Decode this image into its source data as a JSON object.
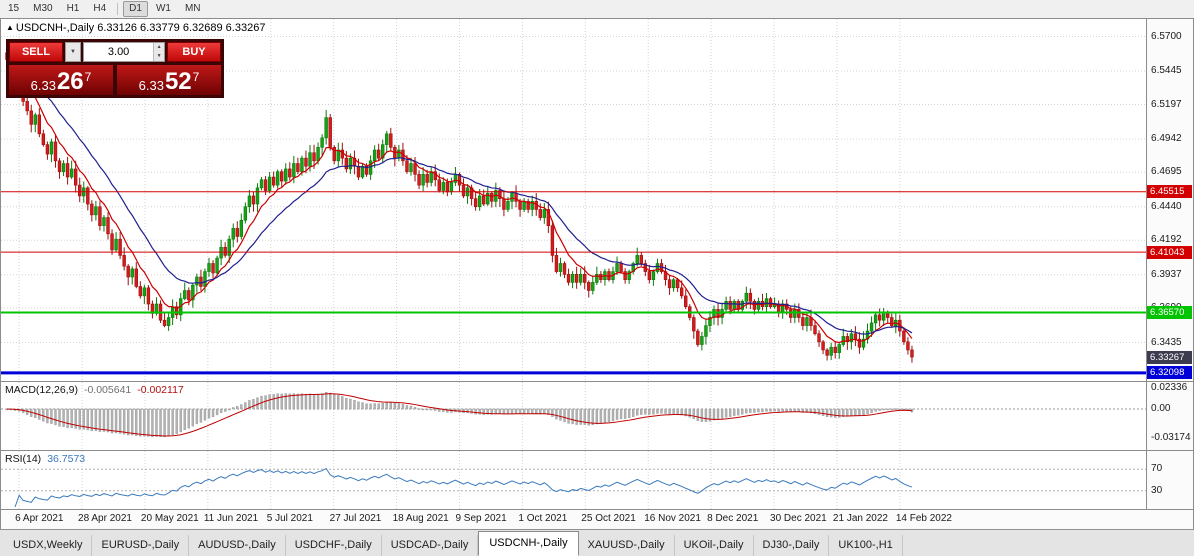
{
  "toolbar": {
    "timeframes": [
      "15",
      "M30",
      "H1",
      "H4",
      "D1",
      "W1",
      "MN"
    ],
    "active": "D1"
  },
  "icons": {
    "dropdown": "▼",
    "spin_up": "▲",
    "spin_down": "▼",
    "title_marker": "▲"
  },
  "chart": {
    "title": "USDCNH-,Daily",
    "ohlc_text": "6.33126 6.33779 6.32689 6.33267",
    "trade_panel": {
      "sell_label": "SELL",
      "buy_label": "BUY",
      "volume": "3.00",
      "bid": {
        "prefix": "6.33",
        "big": "26",
        "sup": "7"
      },
      "ask": {
        "prefix": "6.33",
        "big": "52",
        "sup": "7"
      }
    },
    "y_axis_labels": [
      "6.5700",
      "6.5445",
      "6.5197",
      "6.4942",
      "6.4695",
      "6.4440",
      "6.4192",
      "6.3937",
      "6.3690",
      "6.3435"
    ],
    "price_range": {
      "min": 6.315,
      "max": 6.583
    },
    "levels": [
      {
        "price": 6.45515,
        "label": "6.45515",
        "color": "#d20000",
        "width": 1
      },
      {
        "price": 6.41043,
        "label": "6.41043",
        "color": "#d20000",
        "width": 1
      },
      {
        "price": 6.3657,
        "label": "6.36570",
        "color": "#00c400",
        "width": 2
      },
      {
        "price": 6.32098,
        "label": "6.32098",
        "color": "#0000d8",
        "width": 3
      }
    ],
    "current_price": {
      "price": 6.33267,
      "label": "6.33267",
      "color": "#3c3c4e"
    }
  },
  "macd": {
    "label": "MACD(12,26,9)",
    "value_main": "-0.005641",
    "value_signal": "-0.002117",
    "axis_labels": [
      "0.02336",
      "0.00",
      "-0.03174"
    ],
    "params": {
      "fast": 12,
      "slow": 26,
      "signal": 9
    }
  },
  "rsi": {
    "label": "RSI(14)",
    "value": "36.7573",
    "period": 14,
    "levels": [
      70,
      30
    ],
    "axis_labels": [
      "70",
      "30"
    ]
  },
  "colors": {
    "candle_up": "#15a315",
    "candle_up_edge": "#0b7a0b",
    "candle_down": "#d41c1c",
    "candle_down_edge": "#9e0f0f",
    "ma_fast": "#cc0000",
    "ma_slow": "#1f1f8f",
    "macd_bar": "#b2b2b2",
    "macd_bar_edge": "#9a9a9a",
    "macd_signal": "#c00000",
    "rsi_line": "#3a7abd",
    "grid": "#d4d4d4",
    "level_dash": "#b0b0b0"
  },
  "chart_data": {
    "type": "candlestick",
    "symbol": "USDCNH-",
    "timeframe": "Daily",
    "current_bar": {
      "open": 6.33126,
      "high": 6.33779,
      "low": 6.32689,
      "close": 6.33267
    },
    "first_open": 6.558,
    "closes": [
      6.553,
      6.548,
      6.535,
      6.54,
      6.522,
      6.515,
      6.505,
      6.512,
      6.498,
      6.49,
      6.483,
      6.492,
      6.478,
      6.47,
      6.476,
      6.466,
      6.472,
      6.46,
      6.452,
      6.458,
      6.446,
      6.438,
      6.444,
      6.43,
      6.436,
      6.424,
      6.412,
      6.42,
      6.408,
      6.4,
      6.392,
      6.398,
      6.385,
      6.378,
      6.384,
      6.372,
      6.365,
      6.372,
      6.36,
      6.356,
      6.362,
      6.37,
      6.364,
      6.376,
      6.382,
      6.375,
      6.386,
      6.392,
      6.385,
      6.396,
      6.402,
      6.395,
      6.406,
      6.414,
      6.408,
      6.42,
      6.428,
      6.422,
      6.434,
      6.444,
      6.452,
      6.446,
      6.458,
      6.464,
      6.456,
      6.466,
      6.46,
      6.47,
      6.463,
      6.472,
      6.466,
      6.476,
      6.47,
      6.48,
      6.474,
      6.484,
      6.478,
      6.488,
      6.495,
      6.51,
      6.488,
      6.478,
      6.486,
      6.48,
      6.472,
      6.48,
      6.474,
      6.466,
      6.474,
      6.468,
      6.478,
      6.486,
      6.48,
      6.49,
      6.498,
      6.488,
      6.48,
      6.486,
      6.478,
      6.47,
      6.476,
      6.468,
      6.46,
      6.468,
      6.462,
      6.47,
      6.464,
      6.456,
      6.462,
      6.455,
      6.462,
      6.468,
      6.46,
      6.452,
      6.458,
      6.45,
      6.444,
      6.452,
      6.446,
      6.454,
      6.448,
      6.456,
      6.45,
      6.442,
      6.448,
      6.454,
      6.448,
      6.442,
      6.448,
      6.442,
      6.448,
      6.442,
      6.436,
      6.442,
      6.43,
      6.408,
      6.396,
      6.402,
      6.394,
      6.388,
      6.394,
      6.388,
      6.394,
      6.388,
      6.382,
      6.388,
      6.394,
      6.39,
      6.396,
      6.39,
      6.396,
      6.402,
      6.396,
      6.39,
      6.396,
      6.402,
      6.408,
      6.402,
      6.396,
      6.39,
      6.396,
      6.402,
      6.396,
      6.39,
      6.384,
      6.39,
      6.384,
      6.378,
      6.37,
      6.362,
      6.352,
      6.342,
      6.348,
      6.356,
      6.362,
      6.368,
      6.362,
      6.368,
      6.374,
      6.368,
      6.374,
      6.368,
      6.374,
      6.38,
      6.374,
      6.368,
      6.374,
      6.37,
      6.376,
      6.37,
      6.372,
      6.366,
      6.372,
      6.368,
      6.362,
      6.368,
      6.362,
      6.356,
      6.362,
      6.356,
      6.35,
      6.344,
      6.338,
      6.334,
      6.34,
      6.336,
      6.342,
      6.348,
      6.344,
      6.35,
      6.346,
      6.34,
      6.346,
      6.352,
      6.358,
      6.364,
      6.36,
      6.366,
      6.362,
      6.356,
      6.36,
      6.352,
      6.344,
      6.338,
      6.3327
    ],
    "x_axis_labels": [
      "6 Apr 2021",
      "28 Apr 2021",
      "20 May 2021",
      "11 Jun 2021",
      "5 Jul 2021",
      "27 Jul 2021",
      "18 Aug 2021",
      "9 Sep 2021",
      "1 Oct 2021",
      "25 Oct 2021",
      "16 Nov 2021",
      "8 Dec 2021",
      "30 Dec 2021",
      "21 Jan 2022",
      "14 Feb 2022"
    ],
    "ma_fast_period": 8,
    "ma_slow_period": 20
  },
  "tabs": {
    "items": [
      "USDX,Weekly",
      "EURUSD-,Daily",
      "AUDUSD-,Daily",
      "USDCHF-,Daily",
      "USDCAD-,Daily",
      "USDCNH-,Daily",
      "XAUUSD-,Daily",
      "UKOil-,Daily",
      "DJ30-,Daily",
      "UK100-,H1"
    ],
    "active_index": 5
  }
}
